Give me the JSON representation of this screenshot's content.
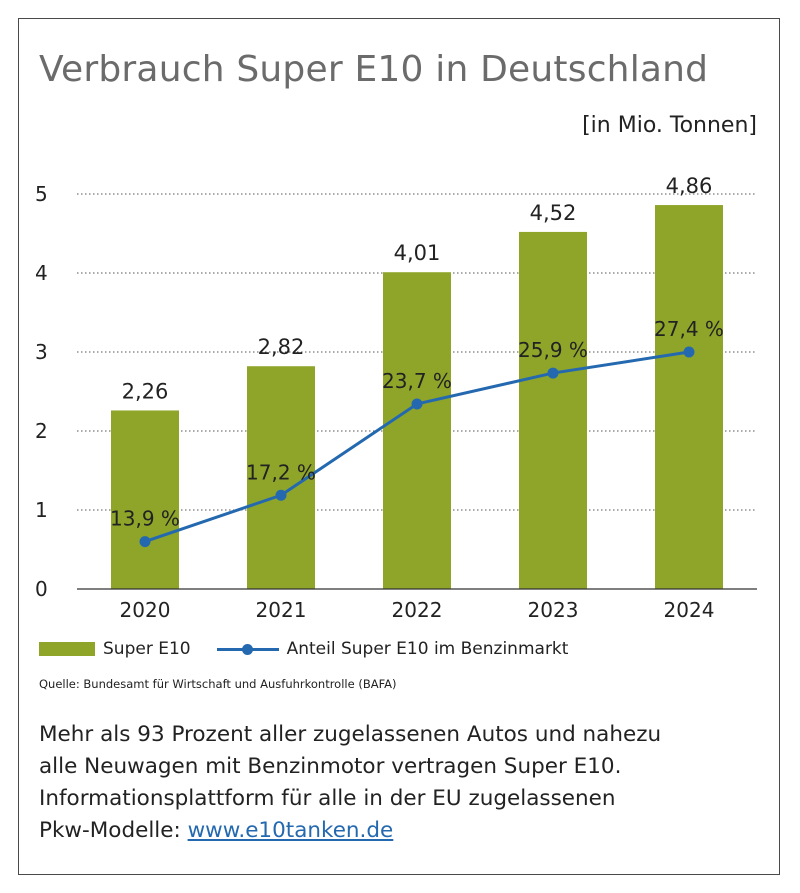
{
  "chart_data": {
    "type": "bar",
    "title": "Verbrauch Super E10 in Deutschland",
    "unit_label": "[in Mio. Tonnen]",
    "categories": [
      "2020",
      "2021",
      "2022",
      "2023",
      "2024"
    ],
    "ylim": [
      0,
      5
    ],
    "yticks": [
      "0",
      "1",
      "2",
      "3",
      "4",
      "5"
    ],
    "grid": true,
    "legend_position": "bottom-left",
    "series": [
      {
        "name": "Super E10",
        "type": "bar",
        "color": "#8ea52a",
        "values": [
          2.26,
          2.82,
          4.01,
          4.52,
          4.86
        ],
        "labels": [
          "2,26",
          "2,82",
          "4,01",
          "4,52",
          "4,86"
        ]
      },
      {
        "name": "Anteil Super E10 im Benzinmarkt",
        "type": "line",
        "color": "#2469b0",
        "values": [
          13.9,
          17.2,
          23.7,
          25.9,
          27.4
        ],
        "labels": [
          "13,9 %",
          "17,2 %",
          "23,7 %",
          "25,9 %",
          "27,4 %"
        ]
      }
    ]
  },
  "source": "Quelle: Bundesamt für Wirtschaft und Ausfuhrkontrolle (BAFA)",
  "body": {
    "line1": "Mehr als 93 Prozent aller zugelassenen Autos und nahezu",
    "line2": "alle Neuwagen mit Benzinmotor vertragen Super E10.",
    "line3": "Informationsplattform für alle in der EU zugelassenen",
    "line4_prefix": "Pkw-Modelle: ",
    "link": "www.e10tanken.de"
  }
}
